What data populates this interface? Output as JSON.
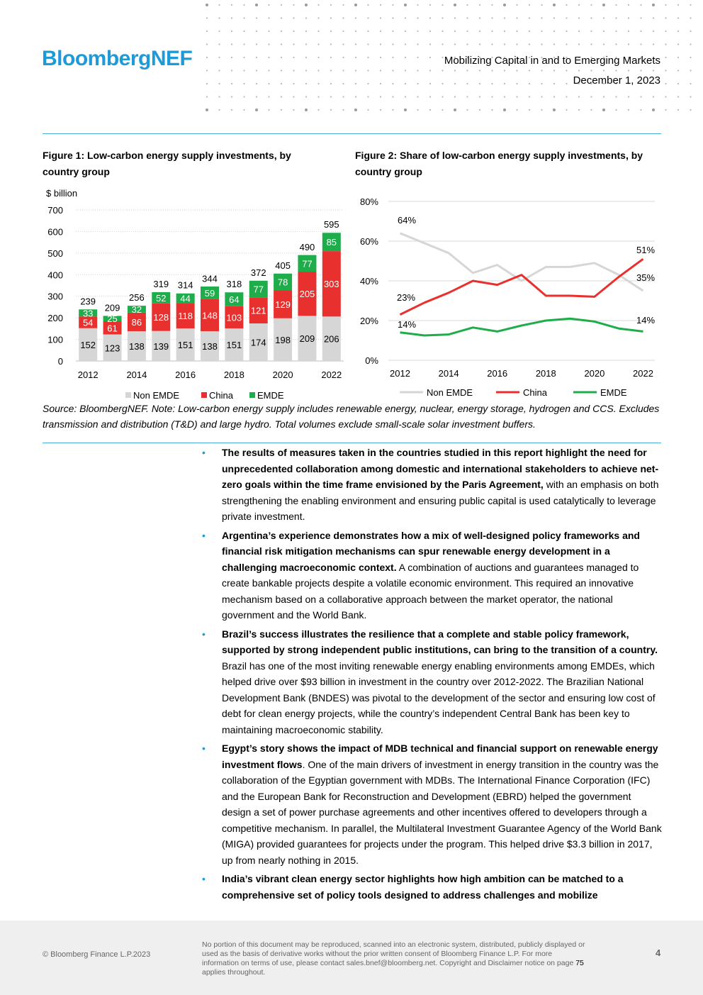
{
  "brand": {
    "logo": "BloombergNEF"
  },
  "header": {
    "title": "Mobilizing Capital in and to Emerging Markets",
    "date": "December 1, 2023"
  },
  "figure1": {
    "title": "Figure 1: Low-carbon energy supply investments, by country group",
    "unit": "$ billion",
    "legend": [
      "Non EMDE",
      "China",
      "EMDE"
    ]
  },
  "figure2": {
    "title": "Figure 2: Share of low-carbon energy supply investments, by country group",
    "legend": [
      "Non EMDE",
      "China",
      "EMDE"
    ]
  },
  "colors": {
    "non_emde": "#d6d6d6",
    "china": "#e8312f",
    "emde": "#1fad4b",
    "accent": "#1e9ad6"
  },
  "chart_data": [
    {
      "type": "bar",
      "stacked": true,
      "title": "Figure 1: Low-carbon energy supply investments, by country group",
      "ylabel": "$ billion",
      "ylim": [
        0,
        700
      ],
      "yticks": [
        0,
        100,
        200,
        300,
        400,
        500,
        600,
        700
      ],
      "xtick_labels": [
        "2012",
        "2014",
        "2016",
        "2018",
        "2020",
        "2022"
      ],
      "categories": [
        "2012",
        "2013",
        "2014",
        "2015",
        "2016",
        "2017",
        "2018",
        "2019",
        "2020",
        "2021",
        "2022"
      ],
      "series": [
        {
          "name": "Non EMDE",
          "values": [
            152,
            123,
            138,
            139,
            151,
            138,
            151,
            174,
            198,
            209,
            206
          ]
        },
        {
          "name": "China",
          "values": [
            54,
            61,
            86,
            128,
            118,
            148,
            103,
            121,
            129,
            205,
            303
          ]
        },
        {
          "name": "EMDE",
          "values": [
            33,
            25,
            32,
            52,
            44,
            59,
            64,
            77,
            78,
            77,
            85
          ]
        }
      ],
      "totals": [
        239,
        209,
        256,
        319,
        314,
        344,
        318,
        372,
        405,
        490,
        595
      ],
      "legend": "bottom"
    },
    {
      "type": "line",
      "title": "Figure 2: Share of low-carbon energy supply investments, by country group",
      "ylim": [
        0,
        80
      ],
      "yticks": [
        "0%",
        "20%",
        "40%",
        "60%",
        "80%"
      ],
      "xtick_labels": [
        "2012",
        "2014",
        "2016",
        "2018",
        "2020",
        "2022"
      ],
      "x": [
        2012,
        2013,
        2014,
        2015,
        2016,
        2017,
        2018,
        2019,
        2020,
        2021,
        2022
      ],
      "series": [
        {
          "name": "Non EMDE",
          "values": [
            64,
            59,
            54,
            44,
            48,
            40,
            47,
            47,
            49,
            43,
            35
          ]
        },
        {
          "name": "China",
          "values": [
            23,
            29,
            34,
            40,
            38,
            43,
            32.5,
            32.5,
            32,
            42,
            51
          ]
        },
        {
          "name": "EMDE",
          "values": [
            14,
            12.5,
            13,
            16.5,
            14.5,
            17.5,
            20,
            21,
            19.5,
            16,
            14.5
          ]
        }
      ],
      "annotations": [
        "64%",
        "23%",
        "14%",
        "51%",
        "35%",
        "14%"
      ],
      "legend": "bottom"
    }
  ],
  "source": "Source: BloombergNEF. Note: Low-carbon energy supply includes renewable energy, nuclear, energy storage, hydrogen and CCS. Excludes transmission and distribution (T&D) and large hydro. Total volumes exclude small-scale solar investment buffers.",
  "bullets": [
    {
      "bold": "The results of measures taken in the countries studied in this report highlight the need for unprecedented collaboration among domestic and international stakeholders to achieve net-zero goals within the time frame envisioned by the Paris Agreement,",
      "text": " with an emphasis on both strengthening the enabling environment and ensuring public capital is used catalytically to leverage private investment."
    },
    {
      "bold": "Argentina’s experience demonstrates how a mix of well-designed policy frameworks and financial risk mitigation mechanisms can spur renewable energy development in a challenging macroeconomic context.",
      "text": " A combination of auctions and guarantees managed to create bankable projects despite a volatile economic environment. This required an innovative mechanism based on a collaborative approach between the market operator, the national government and the World Bank."
    },
    {
      "bold": "Brazil’s success illustrates the resilience that a complete and stable policy framework, supported by strong independent public institutions, can bring to the transition of a country.",
      "text": " Brazil has one of the most inviting renewable energy enabling environments among EMDEs, which helped drive over $93 billion in investment in the country over 2012-2022. The Brazilian National Development Bank (BNDES) was pivotal to the development of the sector and ensuring low cost of debt for clean energy projects, while the country’s independent Central Bank has been key to maintaining macroeconomic stability."
    },
    {
      "bold": "Egypt’s story shows the impact of MDB technical and financial support on renewable energy investment flows",
      "text": ". One of the main drivers of investment in energy transition in the country was the collaboration of the Egyptian government with MDBs. The International Finance Corporation (IFC) and the European Bank for Reconstruction and Development (EBRD) helped the government design a set of power purchase agreements and other incentives offered to developers through a competitive mechanism. In parallel, the Multilateral Investment Guarantee Agency of the World Bank (MIGA) provided guarantees for projects under the program. This helped drive $3.3 billion in 2017, up from nearly nothing in 2015."
    },
    {
      "bold": "India’s vibrant clean energy sector highlights how high ambition can be matched to a comprehensive set of policy tools designed to address challenges and mobilize",
      "text": ""
    }
  ],
  "footer": {
    "copyright": "© Bloomberg Finance L.P.2023",
    "disclaimer_a": "No portion of this document may be reproduced, scanned into an electronic system, distributed, publicly displayed or used as the basis of derivative works without the prior written consent of Bloomberg Finance L.P.  For more information on terms of use, please contact sales.bnef@bloomberg.net. Copyright and Disclaimer notice on page ",
    "disclaimer_page": "75",
    "disclaimer_b": " applies throughout.",
    "page_number": "4"
  }
}
